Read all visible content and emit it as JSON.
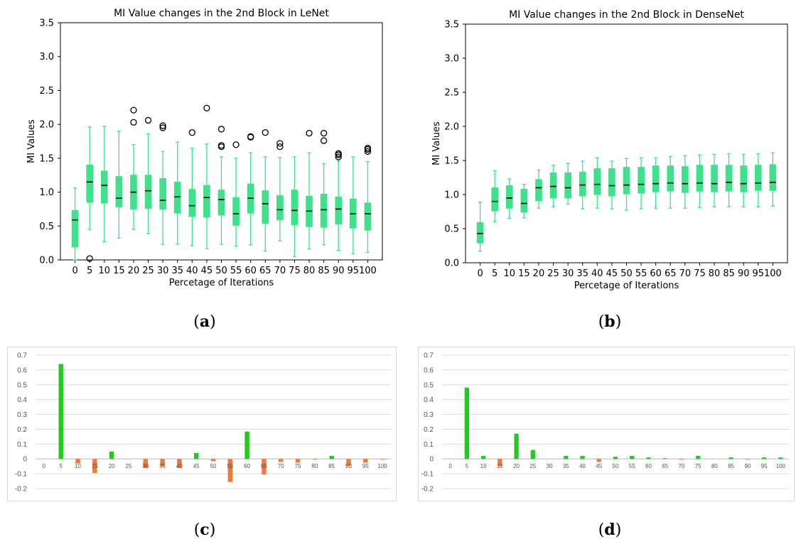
{
  "captions": {
    "a": "a",
    "b": "b",
    "c": "c",
    "d": "d"
  },
  "chart_data": [
    {
      "id": "a",
      "type": "box",
      "title": "MI Value changes in the 2nd Block in LeNet",
      "xlabel": "Percetage of Iterations",
      "ylabel": "MI Values",
      "ylim": [
        0,
        3.5
      ],
      "yticks": [
        "0.0",
        "0.5",
        "1.0",
        "1.5",
        "2.0",
        "2.5",
        "3.0",
        "3.5"
      ],
      "categories": [
        "0",
        "5",
        "10",
        "15",
        "20",
        "25",
        "30",
        "35",
        "40",
        "45",
        "50",
        "55",
        "60",
        "65",
        "70",
        "75",
        "80",
        "85",
        "90",
        "95",
        "100"
      ],
      "boxes": [
        {
          "whislo": 0.0,
          "q1": 0.19,
          "med": 0.59,
          "q3": 0.73,
          "whishi": 1.06,
          "fliers": []
        },
        {
          "whislo": 0.45,
          "q1": 0.85,
          "med": 1.15,
          "q3": 1.4,
          "whishi": 1.96,
          "fliers": [
            0.02
          ]
        },
        {
          "whislo": 0.27,
          "q1": 0.84,
          "med": 1.1,
          "q3": 1.31,
          "whishi": 1.97,
          "fliers": []
        },
        {
          "whislo": 0.32,
          "q1": 0.78,
          "med": 0.91,
          "q3": 1.23,
          "whishi": 1.9,
          "fliers": []
        },
        {
          "whislo": 0.45,
          "q1": 0.75,
          "med": 1.0,
          "q3": 1.25,
          "whishi": 1.7,
          "fliers": [
            2.03,
            2.21
          ]
        },
        {
          "whislo": 0.39,
          "q1": 0.76,
          "med": 1.02,
          "q3": 1.25,
          "whishi": 1.86,
          "fliers": [
            2.06
          ]
        },
        {
          "whislo": 0.23,
          "q1": 0.75,
          "med": 0.88,
          "q3": 1.2,
          "whishi": 1.6,
          "fliers": [
            1.95,
            1.98
          ]
        },
        {
          "whislo": 0.23,
          "q1": 0.69,
          "med": 0.93,
          "q3": 1.15,
          "whishi": 1.74,
          "fliers": []
        },
        {
          "whislo": 0.21,
          "q1": 0.64,
          "med": 0.8,
          "q3": 1.04,
          "whishi": 1.65,
          "fliers": [
            1.88
          ]
        },
        {
          "whislo": 0.17,
          "q1": 0.63,
          "med": 0.92,
          "q3": 1.1,
          "whishi": 1.71,
          "fliers": [
            2.24
          ]
        },
        {
          "whislo": 0.23,
          "q1": 0.66,
          "med": 0.89,
          "q3": 1.03,
          "whishi": 1.52,
          "fliers": [
            1.67,
            1.69,
            1.93
          ]
        },
        {
          "whislo": 0.2,
          "q1": 0.51,
          "med": 0.68,
          "q3": 0.92,
          "whishi": 1.5,
          "fliers": [
            1.7
          ]
        },
        {
          "whislo": 0.22,
          "q1": 0.69,
          "med": 0.91,
          "q3": 1.12,
          "whishi": 1.58,
          "fliers": [
            1.81,
            1.82
          ]
        },
        {
          "whislo": 0.13,
          "q1": 0.54,
          "med": 0.83,
          "q3": 1.02,
          "whishi": 1.52,
          "fliers": [
            1.88
          ]
        },
        {
          "whislo": 0.28,
          "q1": 0.59,
          "med": 0.74,
          "q3": 0.95,
          "whishi": 1.51,
          "fliers": [
            1.67,
            1.72
          ]
        },
        {
          "whislo": 0.05,
          "q1": 0.52,
          "med": 0.73,
          "q3": 1.03,
          "whishi": 1.52,
          "fliers": []
        },
        {
          "whislo": 0.16,
          "q1": 0.49,
          "med": 0.72,
          "q3": 0.94,
          "whishi": 1.58,
          "fliers": [
            1.87
          ]
        },
        {
          "whislo": 0.22,
          "q1": 0.48,
          "med": 0.74,
          "q3": 0.97,
          "whishi": 1.42,
          "fliers": [
            1.76,
            1.87
          ]
        },
        {
          "whislo": 0.14,
          "q1": 0.53,
          "med": 0.75,
          "q3": 0.93,
          "whishi": 1.46,
          "fliers": [
            1.52,
            1.55,
            1.57
          ]
        },
        {
          "whislo": 0.09,
          "q1": 0.47,
          "med": 0.68,
          "q3": 0.9,
          "whishi": 1.52,
          "fliers": []
        },
        {
          "whislo": 0.11,
          "q1": 0.44,
          "med": 0.68,
          "q3": 0.84,
          "whishi": 1.45,
          "fliers": [
            1.6,
            1.63,
            1.65
          ]
        }
      ],
      "colors": {
        "box": "#3de28a",
        "median": "#000000",
        "flier": "#000000"
      }
    },
    {
      "id": "b",
      "type": "box",
      "title": "MI Value changes in the 2nd Block in DenseNet",
      "xlabel": "Percetage of Iterations",
      "ylabel": "MI Values",
      "ylim": [
        0,
        3.5
      ],
      "yticks": [
        "0.0",
        "0.5",
        "1.0",
        "1.5",
        "2.0",
        "2.5",
        "3.0",
        "3.5"
      ],
      "categories": [
        "0",
        "5",
        "10",
        "15",
        "20",
        "25",
        "30",
        "35",
        "40",
        "45",
        "50",
        "55",
        "60",
        "65",
        "70",
        "75",
        "80",
        "85",
        "90",
        "95",
        "100"
      ],
      "boxes": [
        {
          "whislo": 0.17,
          "q1": 0.29,
          "med": 0.43,
          "q3": 0.59,
          "whishi": 0.89,
          "fliers": []
        },
        {
          "whislo": 0.6,
          "q1": 0.76,
          "med": 0.9,
          "q3": 1.1,
          "whishi": 1.35,
          "fliers": []
        },
        {
          "whislo": 0.65,
          "q1": 0.8,
          "med": 0.95,
          "q3": 1.13,
          "whishi": 1.23,
          "fliers": []
        },
        {
          "whislo": 0.66,
          "q1": 0.74,
          "med": 0.87,
          "q3": 1.08,
          "whishi": 1.15,
          "fliers": []
        },
        {
          "whislo": 0.8,
          "q1": 0.91,
          "med": 1.1,
          "q3": 1.22,
          "whishi": 1.36,
          "fliers": []
        },
        {
          "whislo": 0.82,
          "q1": 0.95,
          "med": 1.12,
          "q3": 1.32,
          "whishi": 1.43,
          "fliers": []
        },
        {
          "whislo": 0.86,
          "q1": 0.95,
          "med": 1.1,
          "q3": 1.32,
          "whishi": 1.46,
          "fliers": []
        },
        {
          "whislo": 0.79,
          "q1": 0.98,
          "med": 1.14,
          "q3": 1.33,
          "whishi": 1.49,
          "fliers": []
        },
        {
          "whislo": 0.8,
          "q1": 1.0,
          "med": 1.15,
          "q3": 1.38,
          "whishi": 1.54,
          "fliers": []
        },
        {
          "whislo": 0.79,
          "q1": 0.98,
          "med": 1.13,
          "q3": 1.38,
          "whishi": 1.49,
          "fliers": []
        },
        {
          "whislo": 0.77,
          "q1": 1.01,
          "med": 1.14,
          "q3": 1.4,
          "whishi": 1.53,
          "fliers": []
        },
        {
          "whislo": 0.79,
          "q1": 1.02,
          "med": 1.15,
          "q3": 1.4,
          "whishi": 1.54,
          "fliers": []
        },
        {
          "whislo": 0.8,
          "q1": 1.04,
          "med": 1.16,
          "q3": 1.42,
          "whishi": 1.54,
          "fliers": []
        },
        {
          "whislo": 0.8,
          "q1": 1.05,
          "med": 1.17,
          "q3": 1.42,
          "whishi": 1.56,
          "fliers": []
        },
        {
          "whislo": 0.8,
          "q1": 1.03,
          "med": 1.16,
          "q3": 1.41,
          "whishi": 1.57,
          "fliers": []
        },
        {
          "whislo": 0.81,
          "q1": 1.05,
          "med": 1.17,
          "q3": 1.43,
          "whishi": 1.58,
          "fliers": []
        },
        {
          "whislo": 0.82,
          "q1": 1.04,
          "med": 1.16,
          "q3": 1.43,
          "whishi": 1.59,
          "fliers": []
        },
        {
          "whislo": 0.82,
          "q1": 1.05,
          "med": 1.18,
          "q3": 1.43,
          "whishi": 1.6,
          "fliers": []
        },
        {
          "whislo": 0.82,
          "q1": 1.04,
          "med": 1.16,
          "q3": 1.42,
          "whishi": 1.59,
          "fliers": []
        },
        {
          "whislo": 0.82,
          "q1": 1.06,
          "med": 1.17,
          "q3": 1.43,
          "whishi": 1.6,
          "fliers": []
        },
        {
          "whislo": 0.83,
          "q1": 1.06,
          "med": 1.18,
          "q3": 1.44,
          "whishi": 1.61,
          "fliers": []
        }
      ],
      "colors": {
        "box": "#3de28a",
        "median": "#000000",
        "flier": "#000000"
      }
    },
    {
      "id": "c",
      "type": "bar",
      "title": "",
      "xlabel": "",
      "ylabel": "",
      "ylim": [
        -0.2,
        0.7
      ],
      "yticks": [
        "0.7",
        "0.6",
        "0.5",
        "0.4",
        "0.3",
        "0.2",
        "0.1",
        "0",
        "-0.1",
        "-0.2"
      ],
      "categories": [
        "0",
        "5",
        "10",
        "15",
        "20",
        "25",
        "30",
        "35",
        "40",
        "45",
        "50",
        "55",
        "60",
        "65",
        "70",
        "75",
        "80",
        "85",
        "90",
        "95",
        "100"
      ],
      "values": [
        0,
        0.64,
        -0.03,
        -0.095,
        0.05,
        0,
        -0.06,
        -0.05,
        -0.06,
        0.04,
        -0.015,
        -0.155,
        0.185,
        -0.105,
        -0.02,
        -0.025,
        -0.005,
        0.02,
        -0.045,
        -0.025,
        -0.005
      ],
      "colors": {
        "positive": "#22c91e",
        "negative": "#f0793a",
        "grid": "#dddddd"
      }
    },
    {
      "id": "d",
      "type": "bar",
      "title": "",
      "xlabel": "",
      "ylabel": "",
      "ylim": [
        -0.2,
        0.7
      ],
      "yticks": [
        "0.7",
        "0.6",
        "0.5",
        "0.4",
        "0.3",
        "0.2",
        "0.1",
        "0",
        "-0.1",
        "-0.2"
      ],
      "categories": [
        "0",
        "5",
        "10",
        "15",
        "20",
        "25",
        "30",
        "35",
        "40",
        "45",
        "50",
        "55",
        "60",
        "65",
        "70",
        "75",
        "80",
        "85",
        "90",
        "95",
        "100"
      ],
      "values": [
        0,
        0.48,
        0.02,
        -0.05,
        0.17,
        0.06,
        0,
        0.02,
        0.02,
        -0.02,
        0.015,
        0.02,
        0.01,
        0.005,
        -0.005,
        0.02,
        0,
        0.01,
        -0.005,
        0.01,
        0.01
      ],
      "colors": {
        "positive": "#22c91e",
        "negative": "#f0793a",
        "grid": "#dddddd"
      }
    }
  ]
}
